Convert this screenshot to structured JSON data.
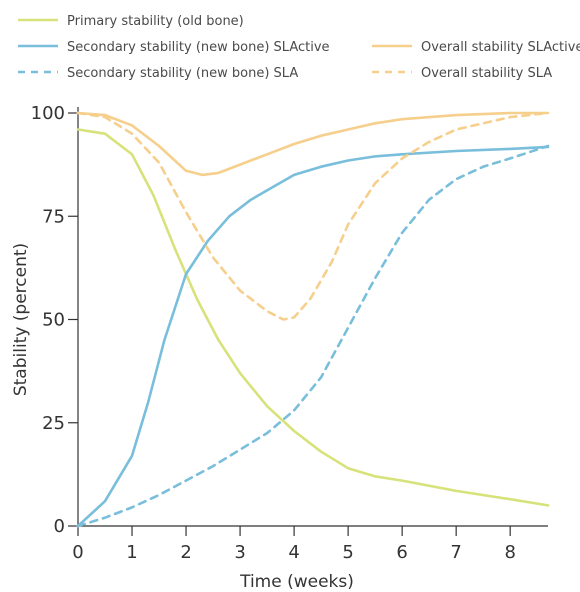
{
  "chart_data": {
    "type": "line",
    "xlabel": "Time (weeks)",
    "ylabel": "Stability (percent)",
    "xlim": [
      0,
      8.7
    ],
    "ylim": [
      0,
      100
    ],
    "x_ticks": [
      "0",
      "1",
      "2",
      "3",
      "4",
      "5",
      "6",
      "7",
      "8"
    ],
    "y_ticks": [
      "0",
      "25",
      "50",
      "75",
      "100"
    ],
    "grid": false,
    "legend_position": "top",
    "series": [
      {
        "name": "Primary stability (old bone)",
        "color": "#d7e27a",
        "dash": "solid",
        "x": [
          0,
          0.5,
          1,
          1.4,
          1.8,
          2.2,
          2.6,
          3,
          3.5,
          4,
          4.5,
          5,
          5.5,
          6,
          7,
          8,
          8.7
        ],
        "y": [
          96,
          95,
          90,
          80,
          67,
          55,
          45,
          37,
          29,
          23,
          18,
          14,
          12,
          11,
          8.5,
          6.5,
          5
        ]
      },
      {
        "name": "Secondary stability (new bone) SLActive",
        "color": "#79bedb",
        "dash": "solid",
        "x": [
          0,
          0.5,
          1,
          1.3,
          1.6,
          2,
          2.4,
          2.8,
          3.2,
          3.6,
          4,
          4.5,
          5,
          5.5,
          6,
          7,
          8,
          8.7
        ],
        "y": [
          0,
          6,
          17,
          30,
          45,
          61,
          69,
          75,
          79,
          82,
          85,
          87,
          88.5,
          89.5,
          90,
          90.8,
          91.3,
          91.8
        ]
      },
      {
        "name": "Overall stability SLActive",
        "color": "#f6cf8c",
        "dash": "solid",
        "x": [
          0,
          0.5,
          1,
          1.5,
          2,
          2.3,
          2.6,
          3,
          3.5,
          4,
          4.5,
          5,
          5.5,
          6,
          7,
          8,
          8.7
        ],
        "y": [
          100,
          99.5,
          97,
          92,
          86,
          85,
          85.5,
          87.5,
          90,
          92.5,
          94.5,
          96,
          97.5,
          98.5,
          99.5,
          100,
          100
        ]
      },
      {
        "name": "Secondary stability (new bone) SLA",
        "color": "#79bedb",
        "dash": "dashed",
        "x": [
          0,
          0.5,
          1,
          1.5,
          2,
          2.5,
          3,
          3.5,
          4,
          4.5,
          5,
          5.5,
          6,
          6.5,
          7,
          7.5,
          8,
          8.7
        ],
        "y": [
          0,
          2,
          4.5,
          7.5,
          11,
          14.5,
          18.5,
          22.5,
          28,
          36,
          48,
          60,
          71,
          79,
          84,
          87,
          89,
          92
        ]
      },
      {
        "name": "Overall stability SLA",
        "color": "#f6cf8c",
        "dash": "dashed",
        "x": [
          0,
          0.5,
          1,
          1.5,
          2,
          2.5,
          3,
          3.5,
          3.8,
          4,
          4.3,
          4.7,
          5,
          5.5,
          6,
          6.5,
          7,
          7.5,
          8,
          8.7
        ],
        "y": [
          100,
          99,
          95,
          88,
          76,
          65,
          57,
          52,
          50,
          50.5,
          55,
          64,
          73,
          83,
          89,
          93,
          96,
          97.5,
          99,
          100
        ]
      }
    ]
  }
}
